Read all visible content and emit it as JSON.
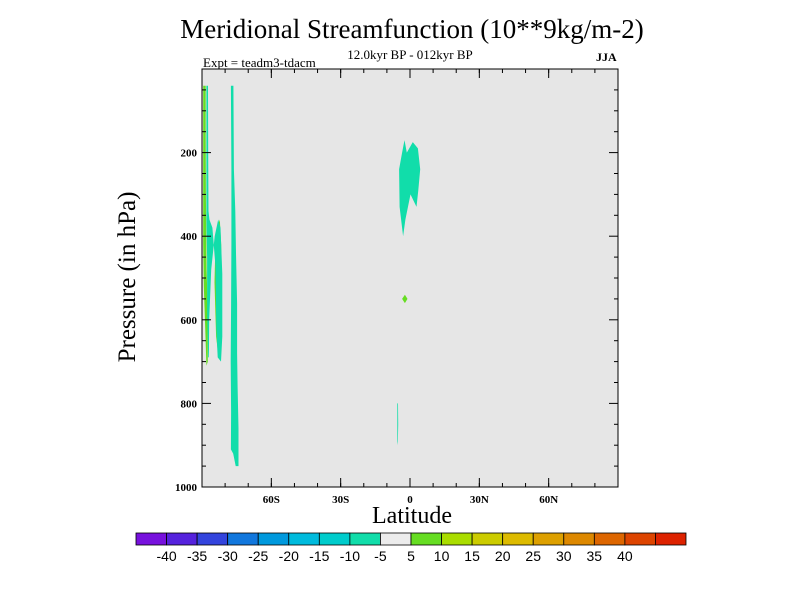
{
  "chart_data": {
    "type": "contour-map",
    "title": "Meridional Streamfunction (10**9kg/m-2)",
    "subtitle": "12.0kyr BP - 012kyr BP",
    "left_subtitle": "Expt = teadm3-tdacm",
    "right_subtitle": "JJA",
    "xlabel": "Latitude",
    "ylabel": "Pressure (in hPa)",
    "xlim": [
      -90,
      90
    ],
    "ylim": [
      0,
      1000
    ],
    "y_inverted": true,
    "x_ticks": [
      {
        "value": -60,
        "label": "60S"
      },
      {
        "value": -30,
        "label": "30S"
      },
      {
        "value": 0,
        "label": "0"
      },
      {
        "value": 30,
        "label": "30N"
      },
      {
        "value": 60,
        "label": "60N"
      }
    ],
    "y_ticks": [
      {
        "value": 200,
        "label": "200"
      },
      {
        "value": 400,
        "label": "400"
      },
      {
        "value": 600,
        "label": "600"
      },
      {
        "value": 800,
        "label": "800"
      },
      {
        "value": 1000,
        "label": "1000"
      }
    ],
    "background_color": "#e6e6e6",
    "regions": [
      {
        "name": "positive-5-10-strip-far-south",
        "level": "5 to 10",
        "color": "#66dd22",
        "points": [
          [
            -89.5,
            40
          ],
          [
            -88.4,
            40
          ],
          [
            -88.4,
            150
          ],
          [
            -88.3,
            300
          ],
          [
            -88.0,
            480
          ],
          [
            -87.5,
            580
          ],
          [
            -87.5,
            700
          ],
          [
            -88.1,
            710
          ],
          [
            -88.5,
            640
          ],
          [
            -89.2,
            520
          ],
          [
            -89.5,
            420
          ]
        ]
      },
      {
        "name": "positive-5-10-lobe-60s",
        "level": "5 to 10",
        "color": "#66dd22",
        "points": [
          [
            -84.0,
            390
          ],
          [
            -82.3,
            360
          ],
          [
            -81.7,
            420
          ],
          [
            -81.5,
            520
          ],
          [
            -81.8,
            640
          ],
          [
            -82.8,
            690
          ],
          [
            -83.9,
            640
          ],
          [
            -84.6,
            510
          ],
          [
            -84.3,
            440
          ]
        ]
      },
      {
        "name": "negative-5-10-band-west",
        "level": "-10 to -5",
        "color": "#11ddaa",
        "points": [
          [
            -88.1,
            40
          ],
          [
            -88.1,
            360
          ],
          [
            -87.8,
            450
          ],
          [
            -87.8,
            580
          ],
          [
            -87.3,
            690
          ],
          [
            -87.0,
            690
          ],
          [
            -86.9,
            600
          ],
          [
            -86.0,
            480
          ],
          [
            -84.5,
            400
          ],
          [
            -83.0,
            360
          ],
          [
            -82.0,
            380
          ],
          [
            -81.2,
            490
          ],
          [
            -81.2,
            640
          ],
          [
            -81.8,
            700
          ],
          [
            -83.2,
            690
          ],
          [
            -83.8,
            620
          ],
          [
            -84.2,
            470
          ],
          [
            -85.5,
            380
          ],
          [
            -86.8,
            360
          ],
          [
            -87.2,
            340
          ],
          [
            -87.3,
            200
          ],
          [
            -87.4,
            40
          ]
        ]
      },
      {
        "name": "negative-5-10-band-east",
        "level": "-10 to -5",
        "color": "#11ddaa",
        "points": [
          [
            -77.5,
            40
          ],
          [
            -76.4,
            40
          ],
          [
            -76.2,
            240
          ],
          [
            -75.6,
            340
          ],
          [
            -75.3,
            440
          ],
          [
            -74.8,
            560
          ],
          [
            -74.8,
            680
          ],
          [
            -74.6,
            760
          ],
          [
            -74.2,
            860
          ],
          [
            -74.2,
            950
          ],
          [
            -75.4,
            950
          ],
          [
            -76.5,
            920
          ],
          [
            -77.5,
            910
          ],
          [
            -77.4,
            820
          ],
          [
            -77.6,
            700
          ],
          [
            -77.4,
            560
          ],
          [
            -77.3,
            420
          ],
          [
            -77.3,
            240
          ]
        ]
      },
      {
        "name": "negative-5-10-tropopause-equator",
        "level": "-10 to -5",
        "color": "#11ddaa",
        "points": [
          [
            -3.4,
            200
          ],
          [
            -2.4,
            170
          ],
          [
            -1.4,
            200
          ],
          [
            1.2,
            175
          ],
          [
            3.4,
            190
          ],
          [
            4.4,
            240
          ],
          [
            3.6,
            290
          ],
          [
            2.8,
            330
          ],
          [
            0.2,
            300
          ],
          [
            -2.0,
            360
          ],
          [
            -3.0,
            400
          ],
          [
            -4.5,
            330
          ],
          [
            -4.7,
            240
          ]
        ]
      },
      {
        "name": "positive-5-10-spot-equator",
        "level": "5 to 10",
        "color": "#66dd22",
        "points": [
          [
            -3.4,
            550
          ],
          [
            -2.2,
            540
          ],
          [
            -1.1,
            550
          ],
          [
            -2.2,
            560
          ]
        ]
      },
      {
        "name": "negative-5-10-sliver-lower",
        "level": "-10 to -5",
        "color": "#11ddaa",
        "points": [
          [
            -5.5,
            800
          ],
          [
            -5.2,
            800
          ],
          [
            -5.1,
            850
          ],
          [
            -5.3,
            900
          ],
          [
            -5.5,
            890
          ]
        ]
      }
    ],
    "colorbar": {
      "colors": [
        "#7711dd",
        "#5522dd",
        "#3344dd",
        "#1177dd",
        "#0099dd",
        "#00bbdd",
        "#00cccc",
        "#11ddaa",
        "#ececec",
        "#66dd22",
        "#aadd00",
        "#cccc00",
        "#ddbb00",
        "#dda000",
        "#dd8800",
        "#dd6600",
        "#dd4400",
        "#dd2200"
      ],
      "levels": [
        "-40",
        "-35",
        "-30",
        "-25",
        "-20",
        "-15",
        "-10",
        "-5",
        "5",
        "10",
        "15",
        "20",
        "25",
        "30",
        "35",
        "40"
      ]
    }
  }
}
